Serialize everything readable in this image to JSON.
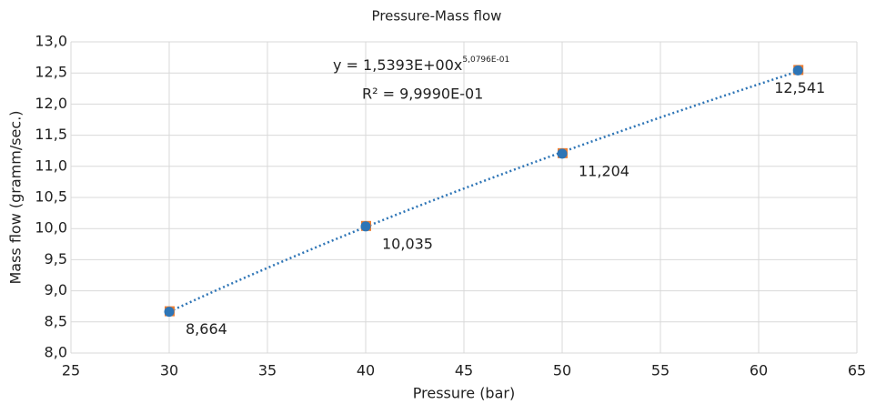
{
  "chart_data": {
    "type": "scatter",
    "title": "Pressure-Mass flow",
    "x_label": "Pressure (bar)",
    "y_label": "Mass flow (gramm/sec.)",
    "x": [
      30,
      40,
      50,
      62
    ],
    "series": [
      {
        "marker": "square",
        "color": "#ed7d31",
        "values": [
          8.664,
          10.035,
          11.204,
          12.541
        ]
      },
      {
        "marker": "circle",
        "color": "#2e75b6",
        "values": [
          8.664,
          10.035,
          11.204,
          12.541
        ],
        "value_labels": [
          "8,664",
          "10,035",
          "11,204",
          "12,541"
        ]
      }
    ],
    "trendline": {
      "kind": "power",
      "color": "#2e75b6",
      "style": "dotted",
      "coefficient": 1.5393,
      "exponent": 0.50796,
      "xrange": [
        30,
        62
      ],
      "equation": "y = 1,5393E+00x",
      "exponent_label": "5,0796E-01",
      "r2_label": "R² = 9,9990E-01"
    },
    "xlim": [
      25,
      65
    ],
    "xticks": [
      25,
      30,
      35,
      40,
      45,
      50,
      55,
      60,
      65
    ],
    "ylim": [
      8.0,
      13.0
    ],
    "yticks": [
      {
        "value": 8.0,
        "label": "8,0"
      },
      {
        "value": 8.5,
        "label": "8,5"
      },
      {
        "value": 9.0,
        "label": "9,0"
      },
      {
        "value": 9.5,
        "label": "9,5"
      },
      {
        "value": 10.0,
        "label": "10,0"
      },
      {
        "value": 10.5,
        "label": "10,5"
      },
      {
        "value": 11.0,
        "label": "11,0"
      },
      {
        "value": 11.5,
        "label": "11,5"
      },
      {
        "value": 12.0,
        "label": "12,0"
      },
      {
        "value": 12.5,
        "label": "12,5"
      },
      {
        "value": 13.0,
        "label": "13,0"
      }
    ],
    "grid": true
  }
}
